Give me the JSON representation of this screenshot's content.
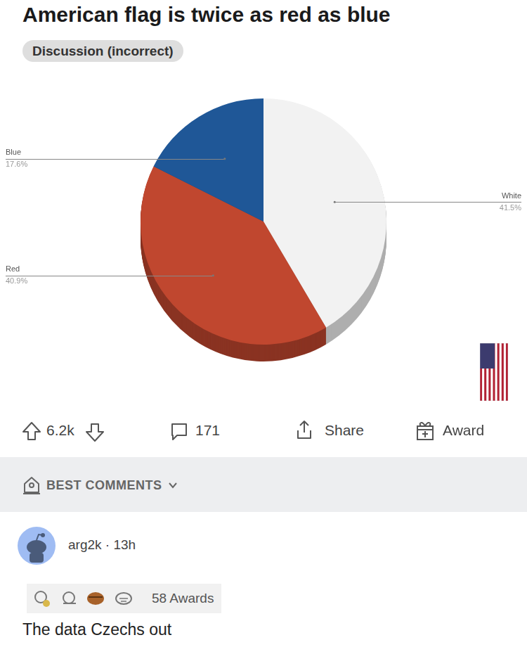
{
  "post": {
    "title": "American flag is twice as red as blue",
    "flair": "Discussion (incorrect)",
    "upvotes": "6.2k",
    "comments": "171",
    "share": "Share",
    "award": "Award"
  },
  "comments_header": "BEST COMMENTS",
  "comment": {
    "author": "arg2k",
    "separator": "·",
    "age": "13h",
    "awards": "58 Awards",
    "text": "The data Czechs out"
  },
  "chart_data": {
    "type": "pie",
    "categories": [
      "White",
      "Red",
      "Blue"
    ],
    "values": [
      41.5,
      40.9,
      17.6
    ],
    "value_labels": [
      "41.5%",
      "40.9%",
      "17.6%"
    ],
    "colors": [
      "#f2f2f2",
      "#c0472f",
      "#1f5797"
    ],
    "data_labels": true
  }
}
